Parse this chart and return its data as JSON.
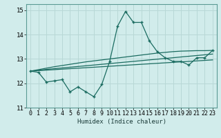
{
  "xlabel": "Humidex (Indice chaleur)",
  "background_color": "#d1eceb",
  "grid_color": "#b8d8d6",
  "line_color": "#1a6b60",
  "xlim": [
    -0.5,
    23.5
  ],
  "ylim": [
    11,
    15.25
  ],
  "yticks": [
    11,
    12,
    13,
    14,
    15
  ],
  "xticks": [
    0,
    1,
    2,
    3,
    4,
    5,
    6,
    7,
    8,
    9,
    10,
    11,
    12,
    13,
    14,
    15,
    16,
    17,
    18,
    19,
    20,
    21,
    22,
    23
  ],
  "main_y": [
    12.5,
    12.45,
    12.05,
    12.1,
    12.15,
    11.65,
    11.85,
    11.65,
    11.45,
    11.95,
    12.9,
    14.35,
    14.95,
    14.5,
    14.5,
    13.75,
    13.3,
    13.05,
    12.9,
    12.9,
    12.75,
    13.05,
    13.05,
    13.35
  ],
  "trend1_y": [
    12.5,
    12.52,
    12.54,
    12.56,
    12.58,
    12.6,
    12.62,
    12.64,
    12.66,
    12.68,
    12.7,
    12.72,
    12.74,
    12.76,
    12.78,
    12.8,
    12.82,
    12.84,
    12.86,
    12.88,
    12.9,
    12.92,
    12.94,
    12.96
  ],
  "trend2_y": [
    12.5,
    12.53,
    12.57,
    12.6,
    12.63,
    12.66,
    12.69,
    12.72,
    12.75,
    12.78,
    12.81,
    12.84,
    12.87,
    12.9,
    12.93,
    12.96,
    12.99,
    13.02,
    13.05,
    13.08,
    13.11,
    13.14,
    13.17,
    13.2
  ],
  "trend3_y": [
    12.5,
    12.56,
    12.62,
    12.68,
    12.73,
    12.78,
    12.83,
    12.88,
    12.92,
    12.96,
    13.0,
    13.04,
    13.08,
    13.12,
    13.16,
    13.2,
    13.24,
    13.27,
    13.3,
    13.32,
    13.33,
    13.34,
    13.34,
    13.35
  ]
}
